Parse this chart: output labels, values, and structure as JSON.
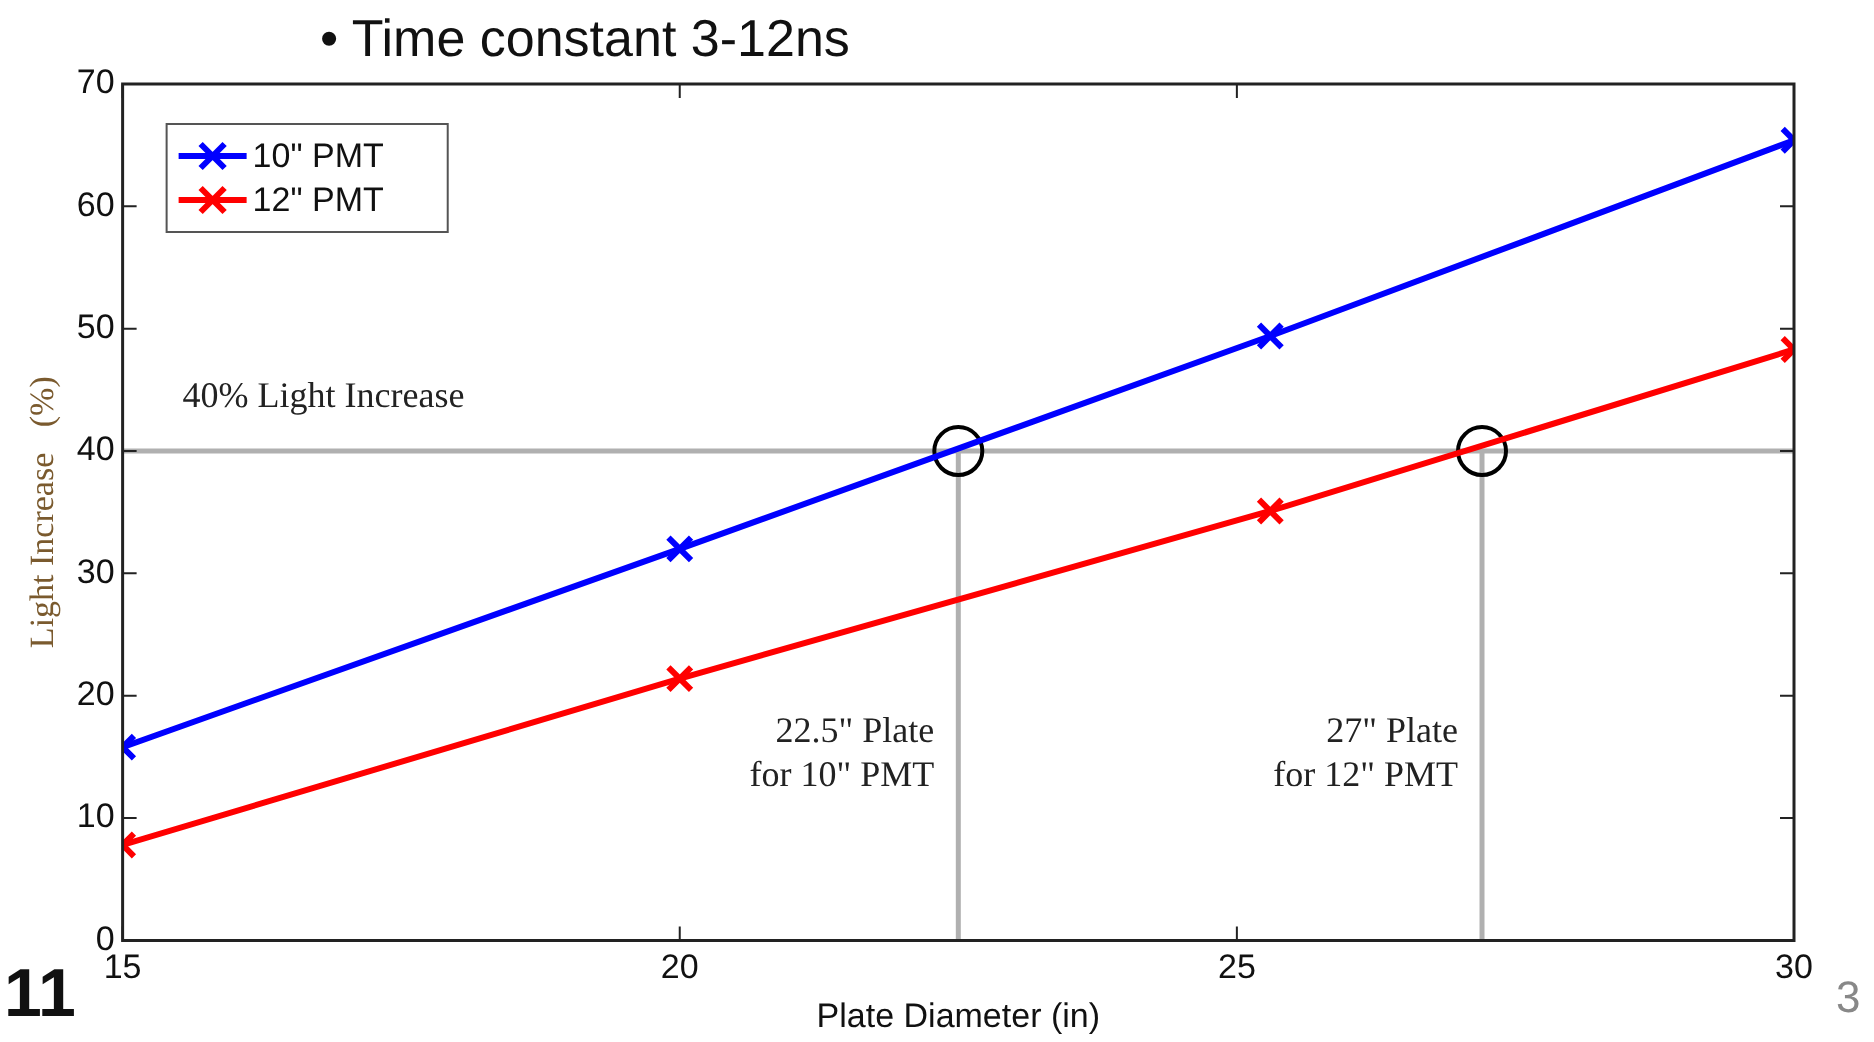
{
  "chart_data": {
    "type": "line",
    "xlabel": "Plate Diameter (in)",
    "ylabel": "Light Increase   (%)",
    "xlim": [
      15,
      30
    ],
    "xticks": [
      15,
      20,
      25,
      30
    ],
    "ylim": [
      0,
      70
    ],
    "yticks": [
      0,
      10,
      20,
      30,
      40,
      50,
      60,
      70
    ],
    "grid": false,
    "legend": "top left",
    "marker": "cross",
    "line_style": "solid",
    "series": [
      {
        "name": "10\" PMT",
        "color": "#0000ff",
        "x": [
          15,
          20,
          25.3,
          30
        ],
        "values": [
          15.8,
          32.0,
          49.4,
          65.4
        ]
      },
      {
        "name": "12\" PMT",
        "color": "#ff0000",
        "x": [
          15,
          20,
          25.3,
          30
        ],
        "values": [
          7.8,
          21.4,
          35.1,
          48.3
        ]
      },
      {
        "type": "scatter",
        "marker": "circle",
        "color": "#000000",
        "x": [
          22.5,
          27.2
        ],
        "values": [
          40,
          40
        ]
      }
    ],
    "ref_lines": [
      {
        "axis": "y",
        "value": 40,
        "label": "40% Light Increase",
        "color": "#b0b0b0"
      },
      {
        "axis": "x",
        "value": 22.5,
        "label": "22.5\" Plate\nfor 10\" PMT",
        "color": "#b0b0b0"
      },
      {
        "axis": "x",
        "value": 27.2,
        "label": "27\" Plate\nfor 12\" PMT",
        "color": "#b0b0b0"
      }
    ],
    "annotations": [
      "• Time constant 3-12ns",
      "11",
      "3"
    ]
  }
}
